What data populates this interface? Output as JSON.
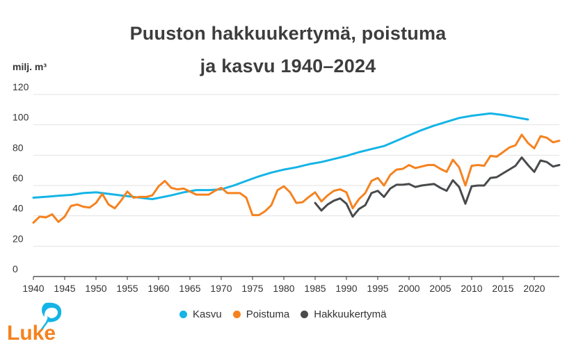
{
  "title_line1": "Puuston hakkuukertymä, poistuma",
  "title_line2": "ja kasvu 1940–2024",
  "colors": {
    "kasvu": "#14b4e6",
    "poistuma": "#f5821f",
    "hakkuukertyma": "#484a4c",
    "grid": "#e2e2e2",
    "axis": "#333333",
    "logo": "#f5821f",
    "logo_leaf": "#14b4e6"
  },
  "logo_text": "Luke",
  "logo_icon": "leaf-icon",
  "chart_data": {
    "type": "line",
    "title": "Puuston hakkuukertymä, poistuma ja kasvu 1940–2024",
    "ylabel": "milj. m³",
    "xlabel": "",
    "ylim": [
      0,
      120
    ],
    "xlim": [
      1940,
      2024
    ],
    "yticks": [
      0,
      20,
      40,
      60,
      80,
      100,
      120
    ],
    "xticks": [
      1940,
      1945,
      1950,
      1955,
      1960,
      1965,
      1970,
      1975,
      1980,
      1985,
      1990,
      1995,
      2000,
      2005,
      2010,
      2015,
      2020
    ],
    "grid": true,
    "legend": "bottom",
    "series": [
      {
        "name": "Kasvu",
        "color": "#14b4e6",
        "x": [
          1940,
          1942,
          1944,
          1946,
          1948,
          1950,
          1952,
          1954,
          1956,
          1958,
          1959,
          1962,
          1964,
          1966,
          1968,
          1970,
          1972,
          1974,
          1976,
          1978,
          1980,
          1982,
          1984,
          1986,
          1988,
          1990,
          1992,
          1994,
          1996,
          1998,
          2000,
          2002,
          2004,
          2006,
          2008,
          2010,
          2012,
          2013,
          2015,
          2017,
          2019
        ],
        "values": [
          52,
          52.6,
          53.2,
          53.8,
          55,
          55.5,
          54.5,
          53.5,
          52.5,
          51.5,
          51,
          53.5,
          55.5,
          57,
          57,
          57.5,
          60,
          63,
          66,
          68.5,
          70.5,
          72,
          74,
          75.5,
          77.5,
          79.5,
          82,
          84,
          86,
          89.5,
          93,
          96.5,
          99.5,
          102,
          104.5,
          106,
          107,
          107.5,
          106.5,
          105,
          103.5
        ]
      },
      {
        "name": "Poistuma",
        "color": "#f5821f",
        "x": [
          1940,
          1941,
          1942,
          1943,
          1944,
          1945,
          1946,
          1947,
          1948,
          1949,
          1950,
          1951,
          1952,
          1953,
          1954,
          1955,
          1956,
          1957,
          1958,
          1959,
          1960,
          1961,
          1962,
          1963,
          1964,
          1965,
          1966,
          1967,
          1968,
          1969,
          1970,
          1971,
          1972,
          1973,
          1974,
          1975,
          1976,
          1977,
          1978,
          1979,
          1980,
          1981,
          1982,
          1983,
          1984,
          1985,
          1986,
          1987,
          1988,
          1989,
          1990,
          1991,
          1992,
          1993,
          1994,
          1995,
          1996,
          1997,
          1998,
          1999,
          2000,
          2001,
          2002,
          2003,
          2004,
          2005,
          2006,
          2007,
          2008,
          2009,
          2010,
          2011,
          2012,
          2013,
          2014,
          2015,
          2016,
          2017,
          2018,
          2019,
          2020,
          2021,
          2022,
          2023,
          2024
        ],
        "values": [
          35.5,
          39.5,
          39,
          41,
          36,
          39.5,
          46.5,
          47.5,
          46,
          45.5,
          48.5,
          54.5,
          47.5,
          45,
          50,
          56,
          52,
          52.5,
          52.5,
          53.5,
          59.5,
          63,
          58.5,
          57.5,
          58,
          56,
          54,
          54,
          54,
          56.5,
          58.5,
          55,
          55,
          55,
          52,
          40.5,
          40.5,
          43,
          47,
          57,
          59.5,
          55.5,
          48.5,
          49,
          52.5,
          55.5,
          49.5,
          53.5,
          56.5,
          57.5,
          55.5,
          45,
          51,
          55,
          63,
          65,
          60,
          67,
          70.5,
          71,
          73.5,
          71.5,
          72.5,
          73.5,
          73.5,
          71,
          69,
          77,
          72,
          60,
          73,
          73.5,
          73,
          79.5,
          79,
          82,
          85,
          86.5,
          93.5,
          88,
          84.5,
          92.5,
          91.5,
          88.5,
          89.5
        ]
      },
      {
        "name": "Hakkuukertymä",
        "color": "#484a4c",
        "x": [
          1985,
          1986,
          1987,
          1988,
          1989,
          1990,
          1991,
          1992,
          1993,
          1994,
          1995,
          1996,
          1997,
          1998,
          1999,
          2000,
          2001,
          2002,
          2003,
          2004,
          2005,
          2006,
          2007,
          2008,
          2009,
          2010,
          2011,
          2012,
          2013,
          2014,
          2015,
          2016,
          2017,
          2018,
          2019,
          2020,
          2021,
          2022,
          2023,
          2024
        ],
        "values": [
          48.5,
          43.5,
          47.5,
          50,
          51.5,
          48,
          39.5,
          44.5,
          47,
          55,
          56.5,
          52.5,
          58,
          60.5,
          60.5,
          61,
          59,
          60,
          60.5,
          61,
          58.5,
          56.5,
          63.5,
          59,
          48,
          59.5,
          60,
          60,
          65,
          65.5,
          68,
          70.5,
          73,
          78.5,
          73.5,
          69,
          76.5,
          75.5,
          72.5,
          73.5
        ]
      }
    ]
  }
}
